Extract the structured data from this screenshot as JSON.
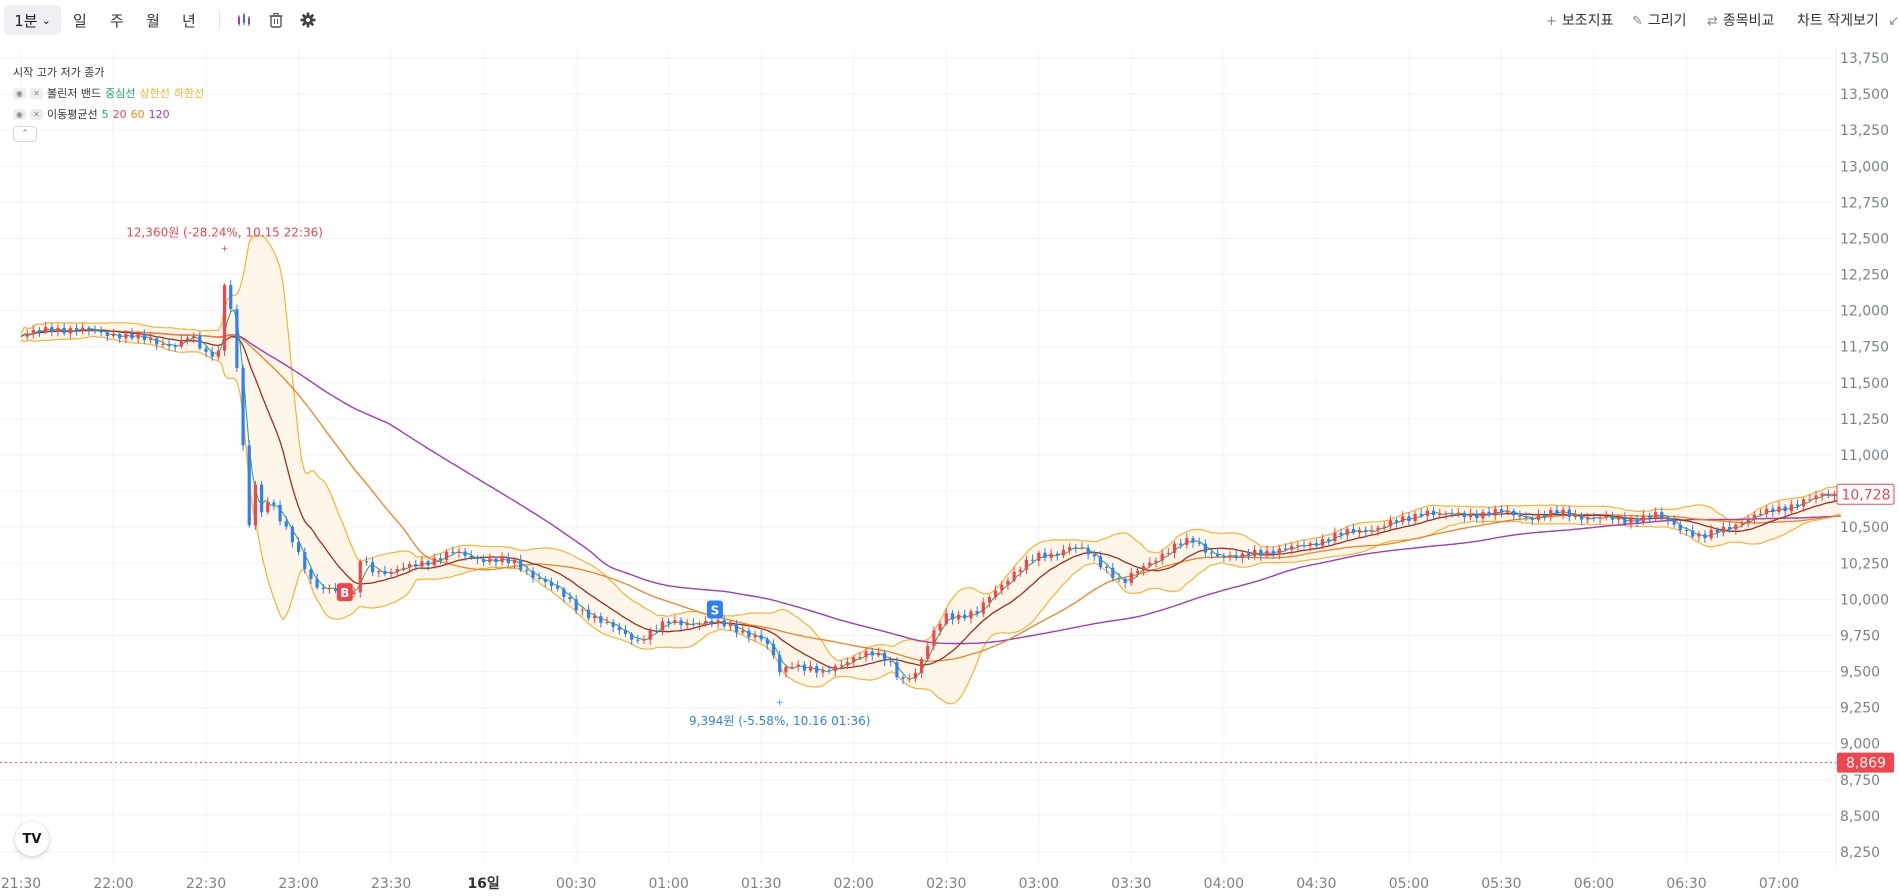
{
  "toolbar": {
    "timeframe_selected": "1분",
    "timeframes": [
      "일",
      "주",
      "월",
      "년"
    ],
    "right_tools": [
      {
        "icon": "plus-icon",
        "label": "보조지표"
      },
      {
        "icon": "pencil-icon",
        "label": "그리기"
      },
      {
        "icon": "swap-icon",
        "label": "종목비교"
      },
      {
        "icon": "shrink-icon",
        "label": "차트 작게보기"
      }
    ]
  },
  "legend": {
    "ohlc_label": "시작 고가 저가 종가",
    "bollinger": {
      "name": "볼린저 밴드",
      "params": [
        "중심선",
        "상한선",
        "하한선"
      ]
    },
    "moving_average": {
      "name": "이동평균선",
      "params": [
        "5",
        "20",
        "60",
        "120"
      ]
    }
  },
  "colors": {
    "up": "#f0454f",
    "down": "#2f7ff5",
    "bb_center": "#26a269",
    "bb_band": "#f9b233",
    "ma5": "#26a269",
    "ma20": "#f0454f",
    "ma60": "#f08c1e",
    "ma120": "#9b3dbd",
    "ma20_line": "#a52a1e",
    "ma60_line": "#f08220"
  },
  "chart_data": {
    "type": "line",
    "y_ticks": [
      "13,750",
      "13,500",
      "13,250",
      "13,000",
      "12,750",
      "12,500",
      "12,250",
      "12,000",
      "11,750",
      "11,500",
      "11,250",
      "11,000",
      "10,750",
      "10,500",
      "10,250",
      "10,000",
      "9,750",
      "9,500",
      "9,250",
      "9,000",
      "8,750",
      "8,500",
      "8,250"
    ],
    "y_range": [
      8180,
      13760
    ],
    "x_ticks": [
      "21:30",
      "22:00",
      "22:30",
      "23:00",
      "23:30",
      "16일",
      "00:30",
      "01:00",
      "01:30",
      "02:00",
      "02:30",
      "03:00",
      "03:30",
      "04:00",
      "04:30",
      "05:00",
      "05:30",
      "06:00",
      "06:30",
      "07:00"
    ],
    "x_tick_minutes": [
      0,
      30,
      60,
      90,
      120,
      150,
      180,
      210,
      240,
      270,
      300,
      330,
      360,
      390,
      420,
      450,
      480,
      510,
      540,
      570
    ],
    "x_range_minutes": [
      0,
      590
    ],
    "current_price": "10,728",
    "current_price_value": 10728,
    "reference_price": "8,869",
    "reference_price_value": 8869,
    "max_annotation": {
      "text": "12,360원 (-28.24%, 10.15 22:36)",
      "x_min": 66,
      "value": 12360
    },
    "min_annotation": {
      "text": "9,394원 (-5.58%, 10.16 01:36)",
      "x_min": 246,
      "value": 9394
    },
    "markers": [
      {
        "label": "B",
        "x_min": 105,
        "value": 10050
      },
      {
        "label": "S",
        "x_min": 225,
        "value": 9930
      }
    ],
    "series": [
      {
        "name": "종가",
        "x": [
          0,
          10,
          20,
          30,
          40,
          45,
          50,
          55,
          60,
          64,
          66,
          68,
          70,
          72,
          74,
          76,
          78,
          80,
          82,
          85,
          88,
          91,
          95,
          100,
          105,
          108,
          110,
          115,
          120,
          125,
          130,
          135,
          140,
          150,
          160,
          170,
          180,
          190,
          200,
          205,
          210,
          220,
          230,
          240,
          243,
          246,
          250,
          255,
          260,
          265,
          270,
          275,
          280,
          283,
          285,
          290,
          293,
          297,
          300,
          305,
          310,
          315,
          320,
          325,
          330,
          335,
          340,
          345,
          350,
          355,
          357,
          360,
          365,
          370,
          375,
          380,
          385,
          390,
          395,
          400,
          410,
          420,
          430,
          440,
          450,
          455,
          460,
          470,
          480,
          490,
          500,
          510,
          520,
          530,
          540,
          545,
          550,
          560,
          570,
          580,
          585,
          590
        ],
        "values": [
          11820,
          11880,
          11860,
          11840,
          11800,
          11780,
          11760,
          11820,
          11700,
          11720,
          12200,
          12000,
          11600,
          11050,
          10500,
          10800,
          10600,
          10700,
          10650,
          10520,
          10400,
          10250,
          10100,
          10080,
          10050,
          10020,
          10280,
          10200,
          10180,
          10220,
          10260,
          10280,
          10320,
          10280,
          10250,
          10120,
          9950,
          9820,
          9720,
          9780,
          9840,
          9840,
          9820,
          9720,
          9650,
          9500,
          9560,
          9520,
          9480,
          9550,
          9600,
          9620,
          9590,
          9540,
          9440,
          9480,
          9620,
          9820,
          9900,
          9880,
          9900,
          10050,
          10150,
          10230,
          10300,
          10320,
          10360,
          10330,
          10250,
          10160,
          10100,
          10160,
          10240,
          10320,
          10380,
          10400,
          10330,
          10300,
          10280,
          10330,
          10340,
          10400,
          10460,
          10500,
          10560,
          10620,
          10580,
          10590,
          10600,
          10570,
          10600,
          10560,
          10550,
          10580,
          10480,
          10420,
          10470,
          10560,
          10630,
          10690,
          10720,
          10728
        ]
      },
      {
        "name": "5",
        "values": []
      },
      {
        "name": "20",
        "values": []
      },
      {
        "name": "60",
        "values": []
      },
      {
        "name": "120",
        "values": []
      }
    ]
  }
}
